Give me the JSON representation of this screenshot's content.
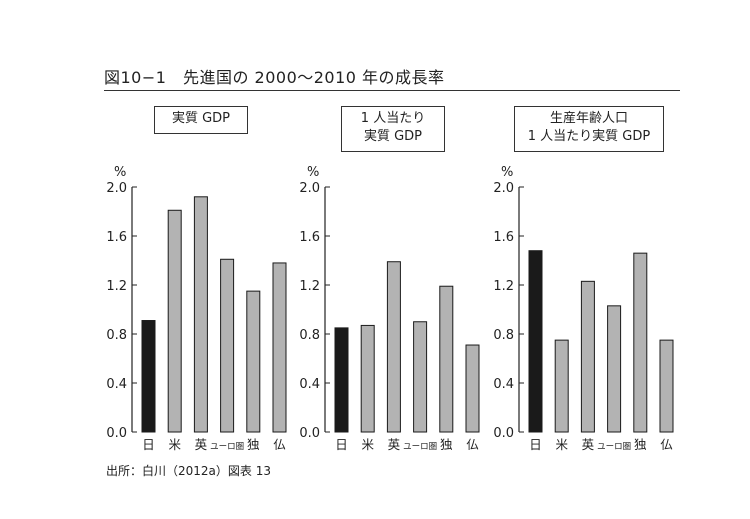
{
  "figure": {
    "title": "図10−1　先進国の 2000〜2010 年の成長率",
    "source": "出所：白川（2012a）図表 13"
  },
  "chart_data": [
    {
      "type": "bar",
      "title_lines": [
        "実質 GDP"
      ],
      "unit": "%",
      "categories": [
        "日",
        "米",
        "英",
        "ユーロ圏",
        "独",
        "仏"
      ],
      "values": [
        0.91,
        1.81,
        1.92,
        1.41,
        1.15,
        1.38
      ],
      "bar_colors": [
        "#1a1a1a",
        "#b3b3b3",
        "#b3b3b3",
        "#b3b3b3",
        "#b3b3b3",
        "#b3b3b3"
      ],
      "ylim": [
        0,
        2.0
      ],
      "yticks": [
        "0.0",
        "0.4",
        "0.8",
        "1.2",
        "1.6",
        "2.0"
      ],
      "grid": false,
      "legend": "none"
    },
    {
      "type": "bar",
      "title_lines": [
        "1 人当たり",
        "実質 GDP"
      ],
      "unit": "%",
      "categories": [
        "日",
        "米",
        "英",
        "ユーロ圏",
        "独",
        "仏"
      ],
      "values": [
        0.85,
        0.87,
        1.39,
        0.9,
        1.19,
        0.71
      ],
      "bar_colors": [
        "#1a1a1a",
        "#b3b3b3",
        "#b3b3b3",
        "#b3b3b3",
        "#b3b3b3",
        "#b3b3b3"
      ],
      "ylim": [
        0,
        2.0
      ],
      "yticks": [
        "0.0",
        "0.4",
        "0.8",
        "1.2",
        "1.6",
        "2.0"
      ],
      "grid": false,
      "legend": "none"
    },
    {
      "type": "bar",
      "title_lines": [
        "生産年齢人口",
        "1 人当たり実質 GDP"
      ],
      "unit": "%",
      "categories": [
        "日",
        "米",
        "英",
        "ユーロ圏",
        "独",
        "仏"
      ],
      "values": [
        1.48,
        0.75,
        1.23,
        1.03,
        1.46,
        0.75
      ],
      "bar_colors": [
        "#1a1a1a",
        "#b3b3b3",
        "#b3b3b3",
        "#b3b3b3",
        "#b3b3b3",
        "#b3b3b3"
      ],
      "ylim": [
        0,
        2.0
      ],
      "yticks": [
        "0.0",
        "0.4",
        "0.8",
        "1.2",
        "1.6",
        "2.0"
      ],
      "grid": false,
      "legend": "none"
    }
  ]
}
